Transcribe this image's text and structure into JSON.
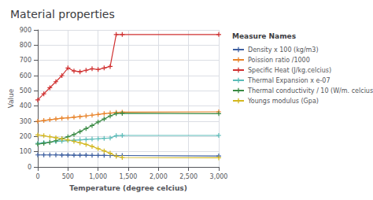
{
  "chart_data": {
    "type": "line",
    "title": "Material properties",
    "xlabel": "Temperature (degree celcius)",
    "ylabel": "Value",
    "legend_title": "Measure Names",
    "xlim": [
      0,
      3000
    ],
    "ylim": [
      0,
      900
    ],
    "xticks": [
      0,
      500,
      1000,
      1500,
      2000,
      2500,
      3000
    ],
    "yticks": [
      0,
      100,
      200,
      300,
      400,
      500,
      600,
      700,
      800,
      900
    ],
    "grid": true,
    "legend": "right",
    "marker": "+",
    "x": [
      0,
      100,
      200,
      300,
      400,
      500,
      600,
      700,
      800,
      900,
      1000,
      1100,
      1200,
      1300,
      1400,
      3000
    ],
    "series": [
      {
        "name": "Density x 100 (kg/m3)",
        "color": "#3d5fa0",
        "values": [
          79,
          79,
          79,
          79,
          78,
          78,
          77,
          77,
          77,
          76,
          76,
          76,
          75,
          75,
          75,
          72
        ]
      },
      {
        "name": "Poission ratio /1000",
        "color": "#e8832a",
        "values": [
          300,
          305,
          310,
          315,
          320,
          323,
          327,
          330,
          335,
          340,
          345,
          350,
          354,
          358,
          360,
          362
        ]
      },
      {
        "name": "Specific Heat (J/kg.celcius)",
        "color": "#d03030",
        "values": [
          440,
          480,
          520,
          560,
          600,
          650,
          630,
          625,
          635,
          645,
          640,
          650,
          660,
          870,
          870,
          870
        ]
      },
      {
        "name": "Thermal Expansion x e-07",
        "color": "#5bbcb8",
        "values": [
          155,
          160,
          163,
          167,
          170,
          173,
          175,
          178,
          180,
          183,
          185,
          188,
          190,
          205,
          207,
          207
        ]
      },
      {
        "name": "Thermal conductivity / 10 (W/m. celcius)",
        "color": "#3a8a44",
        "values": [
          150,
          155,
          162,
          172,
          185,
          198,
          213,
          232,
          252,
          272,
          295,
          315,
          335,
          350,
          352,
          350
        ]
      },
      {
        "name": "Youngs modulus (Gpa)",
        "color": "#d4b820",
        "values": [
          210,
          205,
          198,
          192,
          185,
          177,
          168,
          158,
          148,
          135,
          120,
          105,
          90,
          70,
          62,
          60
        ]
      }
    ]
  }
}
